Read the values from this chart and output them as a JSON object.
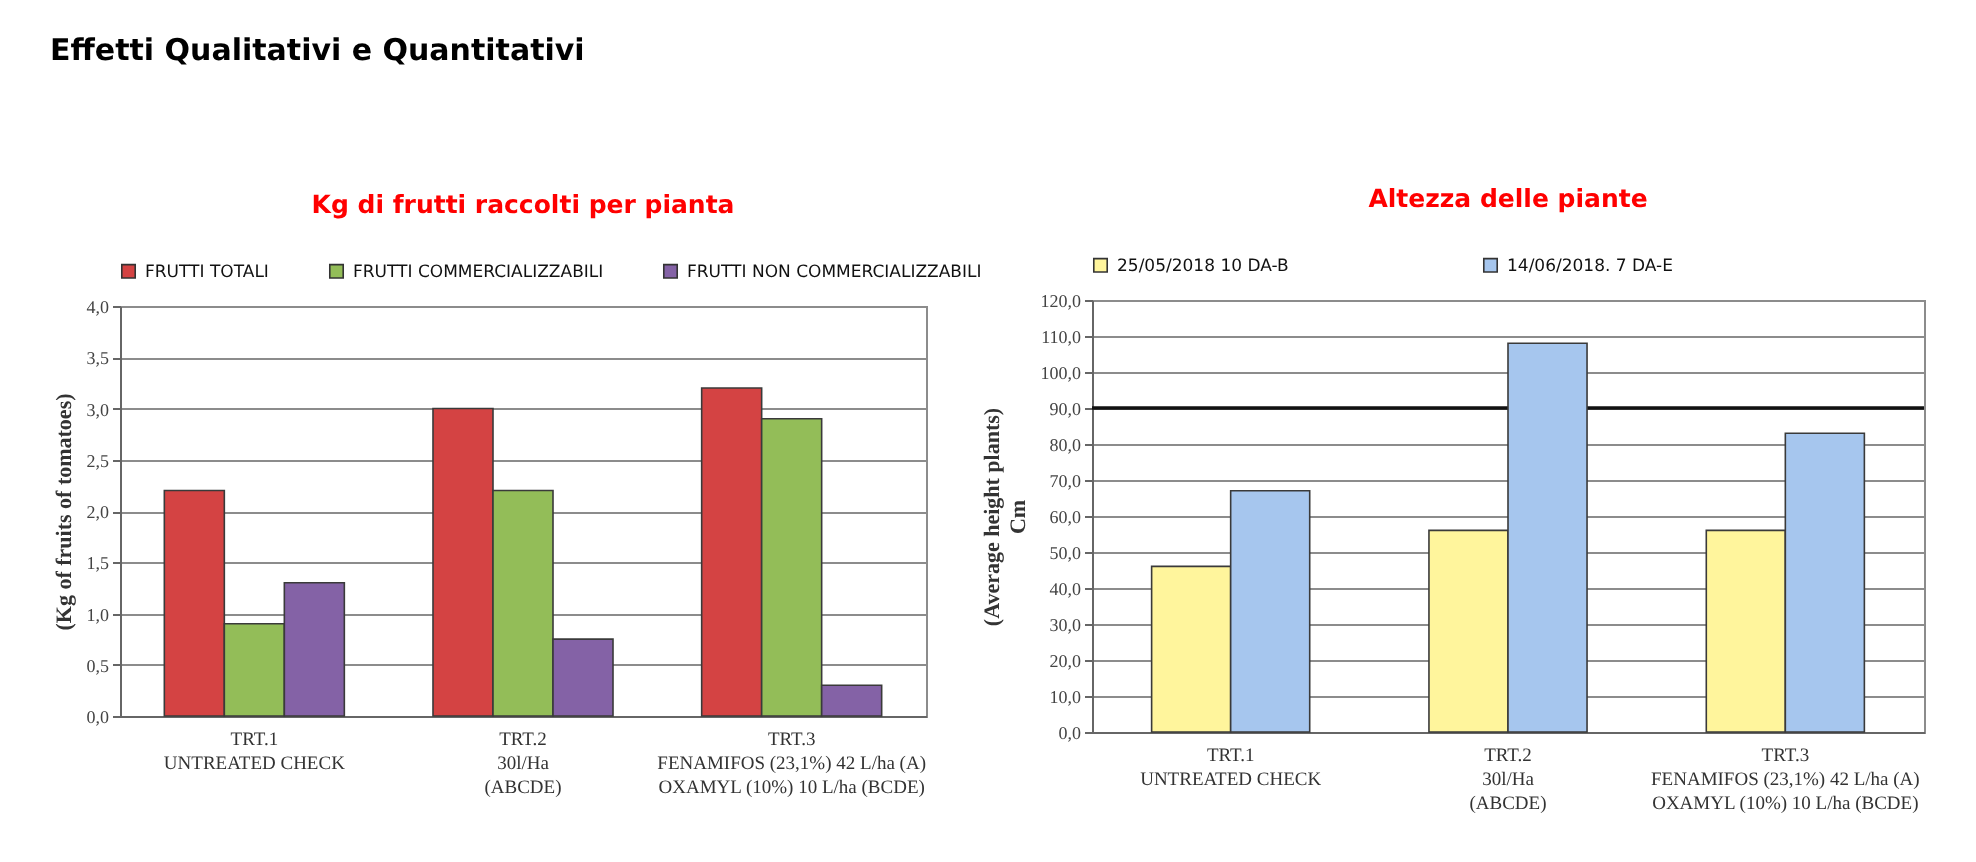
{
  "chart_data": [
    {
      "type": "bar",
      "title": "Kg di frutti raccolti per pianta",
      "ylabel": "(Kg of fruits of tomatoes)",
      "annotations": [
        "Effetti Qualitativi e Quantitativi"
      ],
      "categories": [
        "TRT.1\nUNTREATED CHECK",
        "TRT.2\n30l/Ha\n(ABCDE)",
        "TRT.3\nFENAMIFOS (23,1%) 42 L/ha (A)\nOXAMYL (10%) 10 L/ha (BCDE)"
      ],
      "series": [
        {
          "name": "FRUTTI TOTALI",
          "color": "#d44343",
          "values": [
            2.2,
            3.0,
            3.2
          ]
        },
        {
          "name": "FRUTTI COMMERCIALIZZABILI",
          "color": "#93bd58",
          "values": [
            0.9,
            2.2,
            2.9
          ]
        },
        {
          "name": "FRUTTI NON COMMERCIALIZZABILI",
          "color": "#8462a6",
          "values": [
            1.3,
            0.75,
            0.3
          ]
        }
      ],
      "ylim": [
        0,
        4
      ],
      "yticks": [
        {
          "value": 0,
          "label": "0,0"
        },
        {
          "value": 0.5,
          "label": "0,5"
        },
        {
          "value": 1,
          "label": "1,0"
        },
        {
          "value": 1.5,
          "label": "1,5"
        },
        {
          "value": 2,
          "label": "2,0"
        },
        {
          "value": 2.5,
          "label": "2,5"
        },
        {
          "value": 3,
          "label": "3,0"
        },
        {
          "value": 3.5,
          "label": "3,5"
        },
        {
          "value": 4,
          "label": "4,0"
        }
      ],
      "grid": "y",
      "legend": "top"
    },
    {
      "type": "bar",
      "title": "Altezza delle piante",
      "ylabel": "(Average height plants)\nCm",
      "categories": [
        "TRT.1\nUNTREATED CHECK",
        "TRT.2\n30l/Ha\n(ABCDE)",
        "TRT.3\nFENAMIFOS (23,1%) 42 L/ha (A)\nOXAMYL (10%) 10 L/ha (BCDE)"
      ],
      "series": [
        {
          "name": "25/05/2018 10 DA-B",
          "color": "#fff59c",
          "values": [
            46,
            56,
            56
          ]
        },
        {
          "name": "14/06/2018. 7 DA-E",
          "color": "#a6c6ee",
          "values": [
            67,
            108,
            83
          ]
        }
      ],
      "ylim": [
        0,
        120
      ],
      "yticks": [
        {
          "value": 0,
          "label": "0,0"
        },
        {
          "value": 10,
          "label": "10,0"
        },
        {
          "value": 20,
          "label": "20,0"
        },
        {
          "value": 30,
          "label": "30,0"
        },
        {
          "value": 40,
          "label": "40,0"
        },
        {
          "value": 50,
          "label": "50,0"
        },
        {
          "value": 60,
          "label": "60,0"
        },
        {
          "value": 70,
          "label": "70,0"
        },
        {
          "value": 80,
          "label": "80,0"
        },
        {
          "value": 90,
          "label": "90,0"
        },
        {
          "value": 100,
          "label": "100,0"
        },
        {
          "value": 110,
          "label": "110,0"
        },
        {
          "value": 120,
          "label": "120,0"
        }
      ],
      "ref_lines": [
        {
          "axis": "y",
          "value": 90,
          "color": "#111111"
        }
      ],
      "grid": "y",
      "legend": "top"
    }
  ]
}
